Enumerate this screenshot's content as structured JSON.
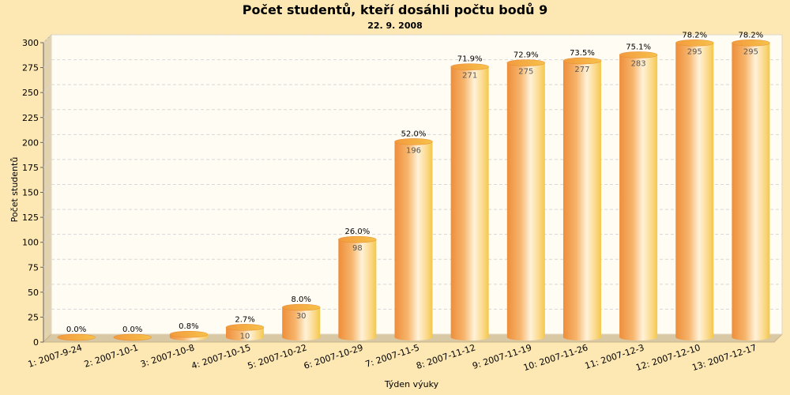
{
  "chart_data": {
    "type": "bar",
    "title": "Počet studentů, kteří dosáhli počtu bodů 9",
    "subtitle": "22. 9. 2008",
    "xlabel": "Týden výuky",
    "ylabel": "Počet studentů",
    "ylim": [
      0,
      300
    ],
    "yticks": [
      0,
      25,
      50,
      75,
      100,
      125,
      150,
      175,
      200,
      225,
      250,
      275,
      300
    ],
    "grid": true,
    "categories": [
      "1: 2007-9-24",
      "2: 2007-10-1",
      "3: 2007-10-8",
      "4: 2007-10-15",
      "5: 2007-10-22",
      "6: 2007-10-29",
      "7: 2007-11-5",
      "8: 2007-11-12",
      "9: 2007-11-19",
      "10: 2007-11-26",
      "11: 2007-12-3",
      "12: 2007-12-10",
      "13: 2007-12-17"
    ],
    "values": [
      0,
      0,
      3,
      10,
      30,
      98,
      196,
      271,
      275,
      277,
      283,
      295,
      295
    ],
    "value_labels": [
      "",
      "",
      "",
      "10",
      "30",
      "98",
      "196",
      "271",
      "275",
      "277",
      "283",
      "295",
      "295"
    ],
    "percent_labels": [
      "0.0%",
      "0.0%",
      "0.8%",
      "2.7%",
      "8.0%",
      "26.0%",
      "52.0%",
      "71.9%",
      "72.9%",
      "73.5%",
      "75.1%",
      "78.2%",
      "78.2%"
    ],
    "colors": {
      "background": "#fde7b3",
      "plot": "#fffcf3",
      "wall": "#e3d2b0",
      "bar_dark": "#ee8e3a",
      "bar_light": "#fff2d9",
      "bar_edge": "#f3c84a",
      "bar_top": "#f6a53c"
    }
  }
}
